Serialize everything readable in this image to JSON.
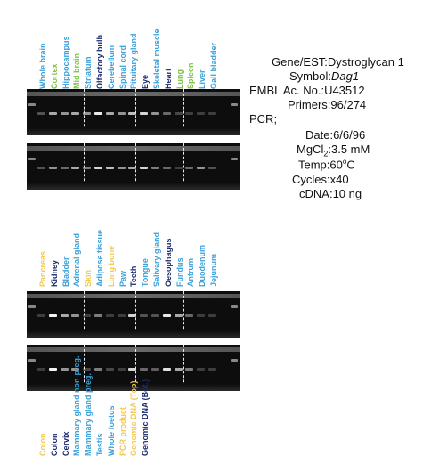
{
  "colors": {
    "blue": "#3aa0d8",
    "green": "#7cc242",
    "yellow": "#f2c94c",
    "navy": "#1a2a6c"
  },
  "section1": {
    "lanes": [
      {
        "label": "Whole brain",
        "color": "blue"
      },
      {
        "label": "Cortex",
        "color": "green"
      },
      {
        "label": "Hippocampus",
        "color": "blue"
      },
      {
        "label": "Mid brain",
        "color": "green"
      },
      {
        "label": "Striatum",
        "color": "blue"
      },
      {
        "label": "Olfactory bulb",
        "color": "navy"
      },
      {
        "label": "Cerebellum",
        "color": "blue"
      },
      {
        "label": "Spinal cord",
        "color": "blue"
      },
      {
        "label": "Pituitary gland",
        "color": "blue"
      },
      {
        "label": "Eye",
        "color": "navy"
      },
      {
        "label": "Skeletal muscle",
        "color": "blue"
      },
      {
        "label": "Heart",
        "color": "navy"
      },
      {
        "label": "Lung",
        "color": "green"
      },
      {
        "label": "Spleen",
        "color": "green"
      },
      {
        "label": "Liver",
        "color": "blue"
      },
      {
        "label": "Gall bladder",
        "color": "blue"
      }
    ],
    "gel_top": [
      0.2,
      0.6,
      0.5,
      0.6,
      0.5,
      0.9,
      0.6,
      0.5,
      0.7,
      0.8,
      0.5,
      0.3,
      0.15,
      0.1,
      0.1,
      0.1
    ],
    "gel_bottom": [
      0.2,
      0.5,
      0.3,
      0.6,
      0.4,
      0.8,
      0.7,
      0.5,
      0.6,
      0.8,
      0.4,
      0.3,
      0.1,
      0.3,
      0.5,
      0.2
    ]
  },
  "section2": {
    "lanes": [
      {
        "label": "Pancreas",
        "color": "yellow"
      },
      {
        "label": "Kidney",
        "color": "navy"
      },
      {
        "label": "Bladder",
        "color": "blue"
      },
      {
        "label": "Adrenal gland",
        "color": "blue"
      },
      {
        "label": "Skin",
        "color": "yellow"
      },
      {
        "label": "Adipose tissue",
        "color": "blue"
      },
      {
        "label": "Long bone",
        "color": "yellow"
      },
      {
        "label": "Paw",
        "color": "blue"
      },
      {
        "label": "Teeth",
        "color": "navy"
      },
      {
        "label": "Tongue",
        "color": "blue"
      },
      {
        "label": "Salivary gland",
        "color": "blue"
      },
      {
        "label": "Oesophagus",
        "color": "navy"
      },
      {
        "label": "Fundus",
        "color": "blue"
      },
      {
        "label": "Antrum",
        "color": "blue"
      },
      {
        "label": "Duodenum",
        "color": "blue"
      },
      {
        "label": "Jejunum",
        "color": "blue"
      }
    ],
    "gel_top": [
      0.1,
      0.95,
      0.6,
      0.5,
      0.1,
      0.4,
      0.1,
      0.1,
      0.8,
      0.2,
      0.2,
      0.9,
      0.6,
      0.3,
      0.1,
      0.1
    ],
    "gel_bottom": [
      0.1,
      0.95,
      0.5,
      0.5,
      0.15,
      0.4,
      0.15,
      0.1,
      0.8,
      0.3,
      0.25,
      0.85,
      0.6,
      0.4,
      0.1,
      0.1
    ]
  },
  "section3": {
    "lanes": [
      {
        "label": "Colon",
        "color": "yellow"
      },
      {
        "label": "Colon",
        "color": "navy"
      },
      {
        "label": "Cervix",
        "color": "navy"
      },
      {
        "label": "Mammary gland non-preg.",
        "color": "blue"
      },
      {
        "label": "Mammary gland preg.",
        "color": "blue"
      },
      {
        "label": "Testis",
        "color": "blue"
      },
      {
        "label": "Whole foetus",
        "color": "blue"
      },
      {
        "label": "PCR product",
        "color": "yellow"
      },
      {
        "label": "Genomic DNA (Top)",
        "color": "yellow"
      },
      {
        "label": "Genomic DNA (Bot.)",
        "color": "navy"
      }
    ]
  },
  "info": {
    "gene_label": "Gene/EST:",
    "gene_value": "Dystroglycan 1",
    "symbol_label": "Symbol:",
    "symbol_value": "Dag1",
    "embl_label": "EMBL Ac. No.:",
    "embl_value": "U43512",
    "primers_label": "Primers:",
    "primers_value": "96/274",
    "pcr_label": "PCR;",
    "date_label": "Date:",
    "date_value": "6/6/96",
    "mgcl2_label": "MgCl",
    "mgcl2_sub": "2",
    "mgcl2_value": ":3.5 mM",
    "temp_label": "Temp:",
    "temp_value": "60",
    "temp_sup": "o",
    "temp_unit": "C",
    "cycles_label": "Cycles:",
    "cycles_value": "x40",
    "cdna_label": "cDNA:",
    "cdna_value": "10 ng"
  }
}
